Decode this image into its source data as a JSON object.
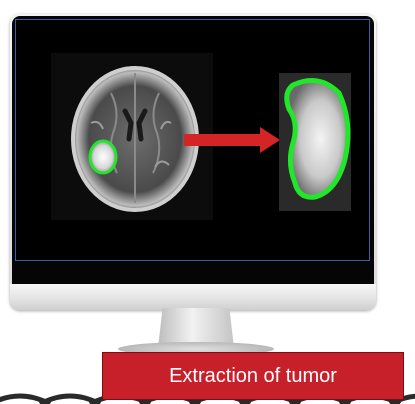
{
  "caption": {
    "text": "Extraction of tumor",
    "background": "#c8202a",
    "text_color": "#ffffff"
  },
  "monitor": {
    "screen_border_color": "#3b5fa6",
    "icons": [
      "brain-mri-image",
      "tumor-crop-image",
      "right-arrow"
    ]
  },
  "colors": {
    "tumor_outline": "#22e62a",
    "arrow": "#d42426"
  }
}
